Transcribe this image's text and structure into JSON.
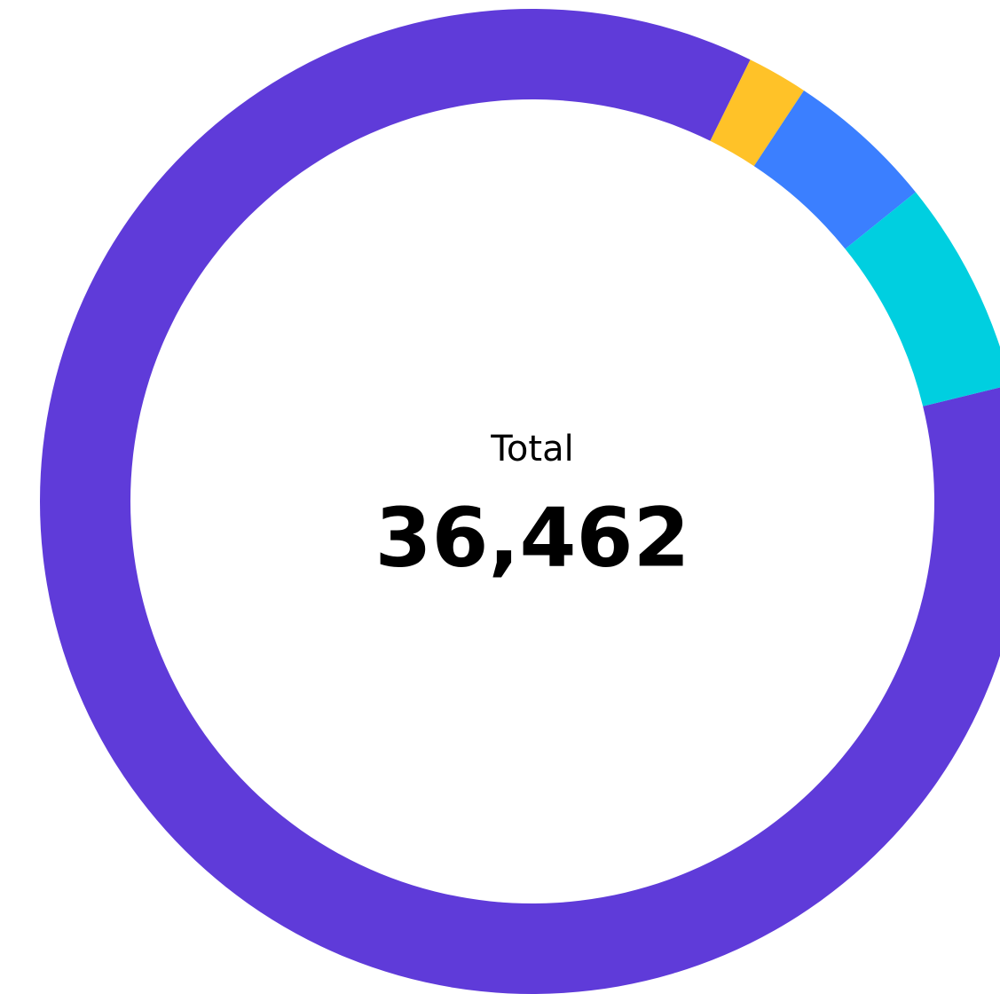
{
  "chart_data": {
    "type": "donut",
    "center_label": "Total",
    "total": "36,462",
    "values": [
      31394,
      729,
      1787,
      2552
    ],
    "colors": [
      "#5f3bd9",
      "#ffc228",
      "#3b7fff",
      "#00cfe0"
    ]
  }
}
